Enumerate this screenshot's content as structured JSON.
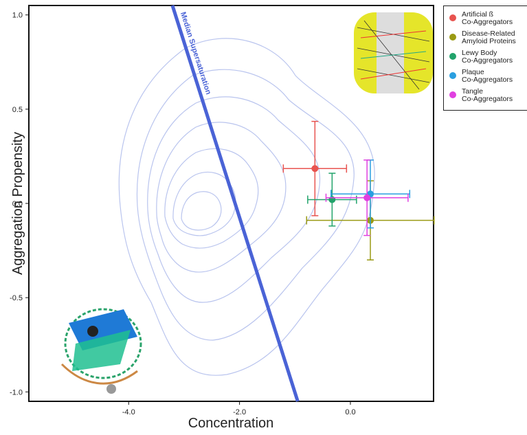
{
  "chart_data": {
    "type": "scatter",
    "xlabel": "Concentration",
    "ylabel": "Aggregation Propensity",
    "xlim": [
      -5.8,
      1.5
    ],
    "ylim": [
      -1.05,
      1.05
    ],
    "xticks": [
      {
        "value": -4,
        "label": "-4.0"
      },
      {
        "value": -2,
        "label": "-2.0"
      },
      {
        "value": 0,
        "label": "0.0"
      }
    ],
    "yticks": [
      {
        "value": 1,
        "label": "1.0"
      },
      {
        "value": 0.5,
        "label": "0.5"
      },
      {
        "value": 0,
        "label": "0.0"
      },
      {
        "value": -0.5,
        "label": "-0.5"
      },
      {
        "value": -1,
        "label": "-1.0"
      }
    ],
    "median_line": {
      "label": "Median Supersaturation",
      "color": "#4a63d6",
      "x": [
        -3.21,
        -0.95
      ],
      "y": [
        1.05,
        -1.05
      ]
    },
    "series": [
      {
        "name": "Artificial ß\nCo-Aggregators",
        "color": "#e8534f",
        "x": [
          -0.64
        ],
        "values": [
          0.185
        ],
        "xerr": [
          0.57
        ],
        "yerr": [
          0.25
        ]
      },
      {
        "name": "Disease-Related\nAmyloid Proteins",
        "color": "#9a9a14",
        "x": [
          0.36
        ],
        "values": [
          -0.09
        ],
        "xerr": [
          1.15
        ],
        "yerr": [
          0.21
        ]
      },
      {
        "name": "Lewy Body\nCo-Aggregators",
        "color": "#21a36b",
        "x": [
          -0.33
        ],
        "values": [
          0.02
        ],
        "xerr": [
          0.44
        ],
        "yerr": [
          0.14
        ]
      },
      {
        "name": "Plaque\nCo-Aggregators",
        "color": "#2a9fe0",
        "x": [
          0.36
        ],
        "values": [
          0.05
        ],
        "xerr": [
          0.71
        ],
        "yerr": [
          0.18
        ]
      },
      {
        "name": "Tangle\nCo-Aggregators",
        "color": "#e040e0",
        "x": [
          0.3
        ],
        "values": [
          0.03
        ],
        "xerr": [
          0.74
        ],
        "yerr": [
          0.2
        ]
      }
    ]
  }
}
